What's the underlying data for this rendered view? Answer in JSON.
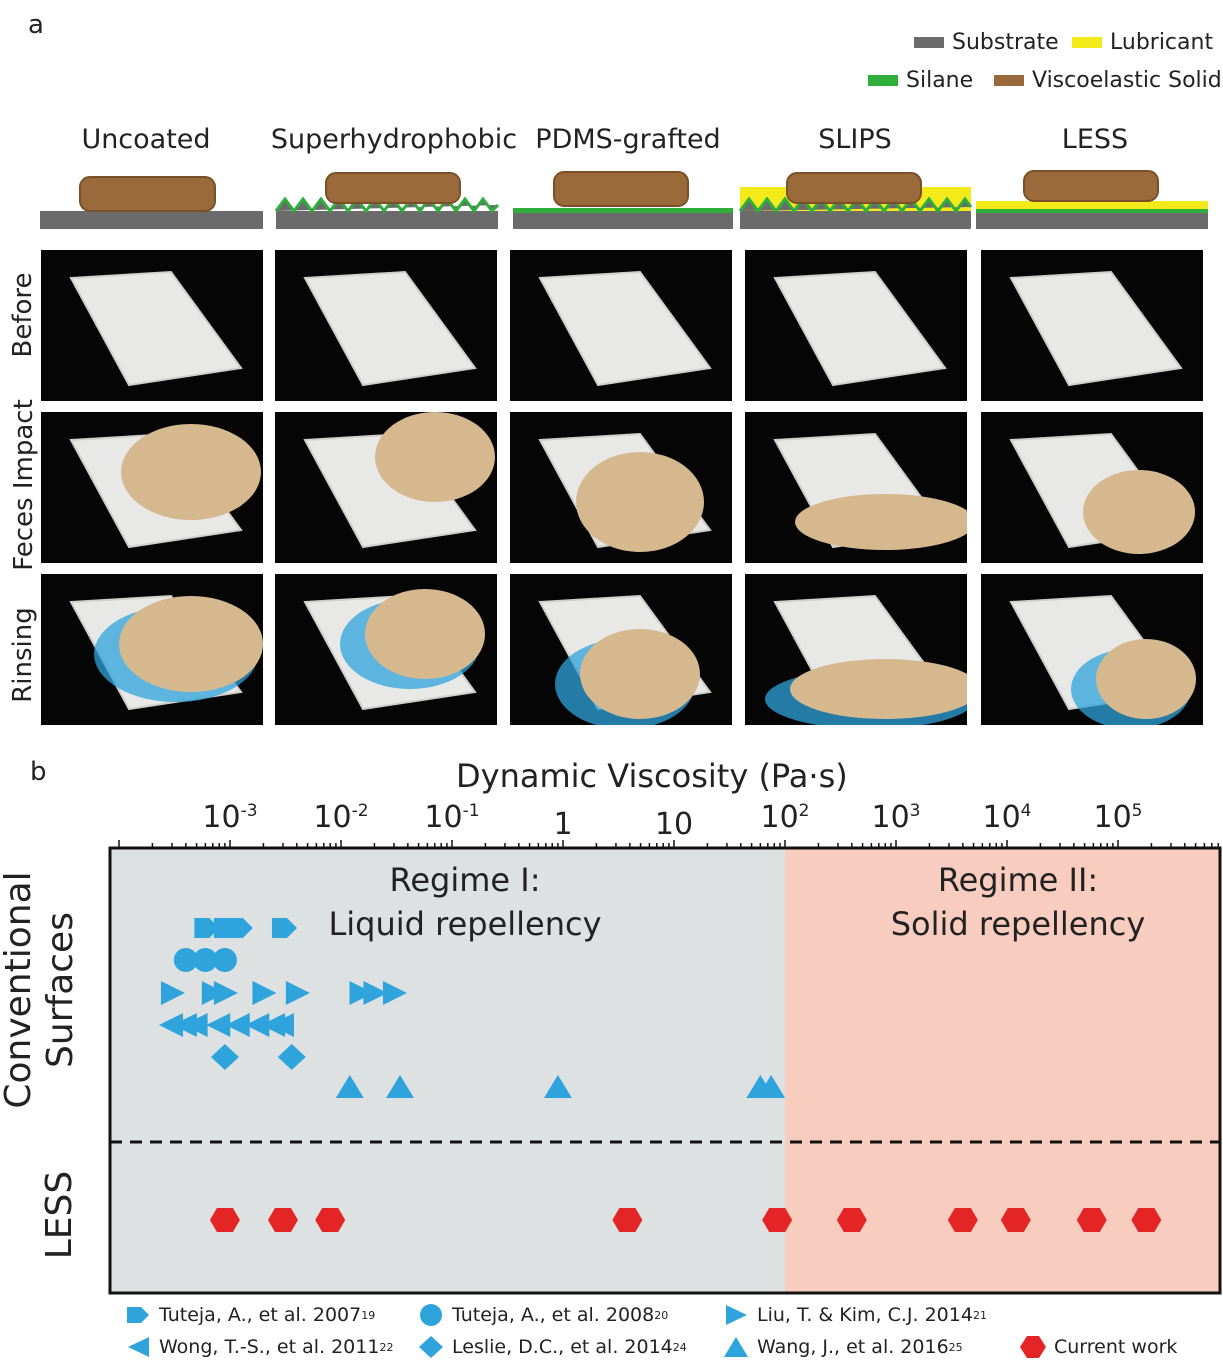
{
  "panel_a": {
    "letter": "a",
    "legend": [
      {
        "label": "Substrate",
        "color": "#6b6b6b"
      },
      {
        "label": "Lubricant",
        "color": "#f3ea1a"
      },
      {
        "label": "Silane",
        "color": "#2fae3c"
      },
      {
        "label": "Viscoelastic Solid",
        "color": "#9b6a3b"
      }
    ],
    "columns": [
      "Uncoated",
      "Superhydrophobic",
      "PDMS-grafted",
      "SLIPS",
      "LESS"
    ],
    "rows": [
      "Before",
      "Feces Impact",
      "Rinsing"
    ]
  },
  "panel_b": {
    "letter": "b",
    "axis_title": "Dynamic Viscosity (Pa·s)",
    "regime1": {
      "line1": "Regime I:",
      "line2": "Liquid repellency"
    },
    "regime2": {
      "line1": "Regime II:",
      "line2": "Solid repellency"
    },
    "ylabel_conv": {
      "line1": "Conventional",
      "line2": "Surfaces"
    },
    "ylabel_less": "LESS",
    "references": [
      {
        "label": "Tuteja, A., et al. 2007",
        "sup": "19"
      },
      {
        "label": "Tuteja, A., et al. 2008",
        "sup": "20"
      },
      {
        "label": "Liu, T. & Kim, C.J. 2014",
        "sup": "21"
      },
      {
        "label": "Wong, T.-S., et al. 2011",
        "sup": "22"
      },
      {
        "label": "Leslie, D.C., et al. 2014",
        "sup": "24"
      },
      {
        "label": "Wang, J., et al. 2016",
        "sup": "25"
      },
      {
        "label": "Current work",
        "sup": ""
      }
    ]
  },
  "colors": {
    "blue": "#2ea3dc",
    "red": "#e32526",
    "regime1_bg": "#dde1e2",
    "regime2_bg": "#f8cdbf"
  },
  "chart_data": {
    "type": "scatter",
    "title": "Dynamic Viscosity (Pa·s)",
    "xscale": "log",
    "xlim": [
      0.0001,
      1000000
    ],
    "ticks": [
      {
        "base": "10",
        "exp": "-3",
        "value": 0.001
      },
      {
        "base": "10",
        "exp": "-2",
        "value": 0.01
      },
      {
        "base": "10",
        "exp": "-1",
        "value": 0.1
      },
      {
        "base": "1",
        "exp": "",
        "value": 1
      },
      {
        "base": "10",
        "exp": "",
        "value": 10
      },
      {
        "base": "10",
        "exp": "2",
        "value": 100
      },
      {
        "base": "10",
        "exp": "3",
        "value": 1000
      },
      {
        "base": "10",
        "exp": "4",
        "value": 10000
      },
      {
        "base": "10",
        "exp": "5",
        "value": 100000
      }
    ],
    "regime_boundary": 100,
    "series": [
      {
        "name": "Tuteja, A., et al. 2007",
        "marker": "pentagon",
        "row": 1,
        "x": [
          0.0006,
          0.0009,
          0.0012,
          0.003
        ]
      },
      {
        "name": "Tuteja, A., et al. 2008",
        "marker": "circle",
        "row": 2,
        "x": [
          0.0004,
          0.0006,
          0.0009
        ]
      },
      {
        "name": "Liu, T. & Kim, C.J. 2014",
        "marker": "triangle-right",
        "row": 3,
        "x": [
          0.0003,
          0.0007,
          0.0009,
          0.002,
          0.004,
          0.015,
          0.02,
          0.03
        ]
      },
      {
        "name": "Wong, T.-S., et al. 2011",
        "marker": "triangle-left",
        "row": 4,
        "x": [
          0.0003,
          0.0004,
          0.0005,
          0.0008,
          0.0012,
          0.0018,
          0.0025,
          0.003
        ]
      },
      {
        "name": "Leslie, D.C., et al. 2014",
        "marker": "diamond",
        "row": 5,
        "x": [
          0.0009,
          0.0036
        ]
      },
      {
        "name": "Wang, J., et al. 2016",
        "marker": "triangle-up",
        "row": 6,
        "x": [
          0.012,
          0.034,
          0.9,
          60,
          75
        ]
      },
      {
        "name": "Current work",
        "marker": "hexagon",
        "row": 7,
        "x": [
          0.0009,
          0.003,
          0.008,
          3.8,
          85,
          400,
          4000,
          12000,
          58000,
          180000
        ]
      }
    ]
  }
}
